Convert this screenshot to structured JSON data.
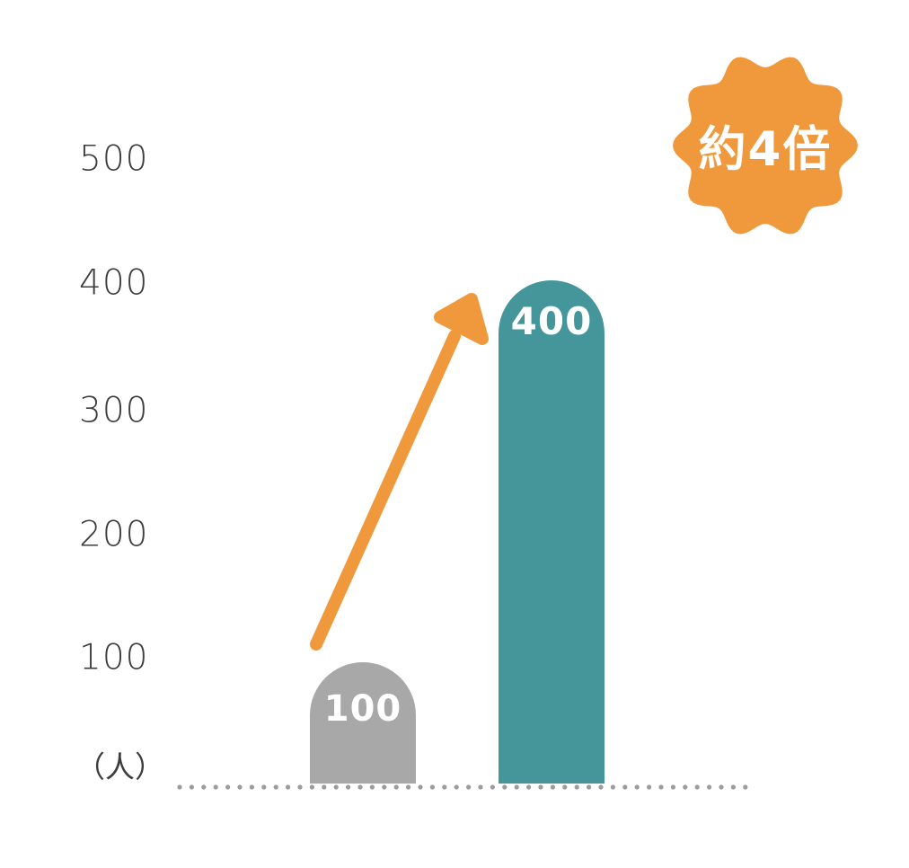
{
  "chart_data": {
    "type": "bar",
    "values": [
      100,
      400
    ],
    "bar_value_labels": [
      "100",
      "400"
    ],
    "yticks": [
      500,
      400,
      300,
      200,
      100
    ],
    "ylim": [
      0,
      500
    ],
    "y_unit_label": "（人）",
    "annotation_badge": "約4倍",
    "annotation_arrow": "upward arrow from small bar to large bar",
    "grid": false,
    "legend": false,
    "colors": {
      "bar_before": "#a8a8a8",
      "bar_after": "#44969b",
      "accent_orange": "#f0993c",
      "tick_text": "#3d3d3d",
      "baseline_dots": "#9c9c9c",
      "bar_label_text": "#ffffff"
    }
  },
  "yaxis": {
    "ticks": [
      "500",
      "400",
      "300",
      "200",
      "100"
    ],
    "unit": "（人）"
  },
  "bars": [
    {
      "label": "100"
    },
    {
      "label": "400"
    }
  ],
  "badge": {
    "label": "約4倍"
  }
}
